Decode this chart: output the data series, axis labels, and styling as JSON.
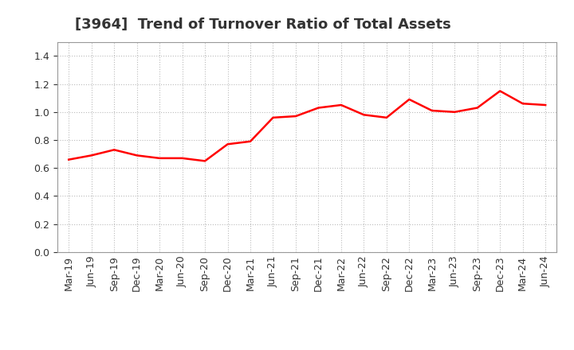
{
  "title": "[3964]  Trend of Turnover Ratio of Total Assets",
  "x_labels": [
    "Mar-19",
    "Jun-19",
    "Sep-19",
    "Dec-19",
    "Mar-20",
    "Jun-20",
    "Sep-20",
    "Dec-20",
    "Mar-21",
    "Jun-21",
    "Sep-21",
    "Dec-21",
    "Mar-22",
    "Jun-22",
    "Sep-22",
    "Dec-22",
    "Mar-23",
    "Jun-23",
    "Sep-23",
    "Dec-23",
    "Mar-24",
    "Jun-24"
  ],
  "y_values": [
    0.66,
    0.69,
    0.73,
    0.69,
    0.67,
    0.67,
    0.65,
    0.77,
    0.79,
    0.96,
    0.97,
    1.03,
    1.05,
    0.98,
    0.96,
    1.09,
    1.01,
    1.0,
    1.03,
    1.15,
    1.06,
    1.05
  ],
  "line_color": "#FF0000",
  "line_width": 1.8,
  "ylim": [
    0.0,
    1.5
  ],
  "yticks": [
    0.0,
    0.2,
    0.4,
    0.6,
    0.8,
    1.0,
    1.2,
    1.4
  ],
  "background_color": "#ffffff",
  "plot_bg_color": "#ffffff",
  "grid_color": "#bbbbbb",
  "title_fontsize": 13,
  "tick_fontsize": 9,
  "title_color": "#333333"
}
